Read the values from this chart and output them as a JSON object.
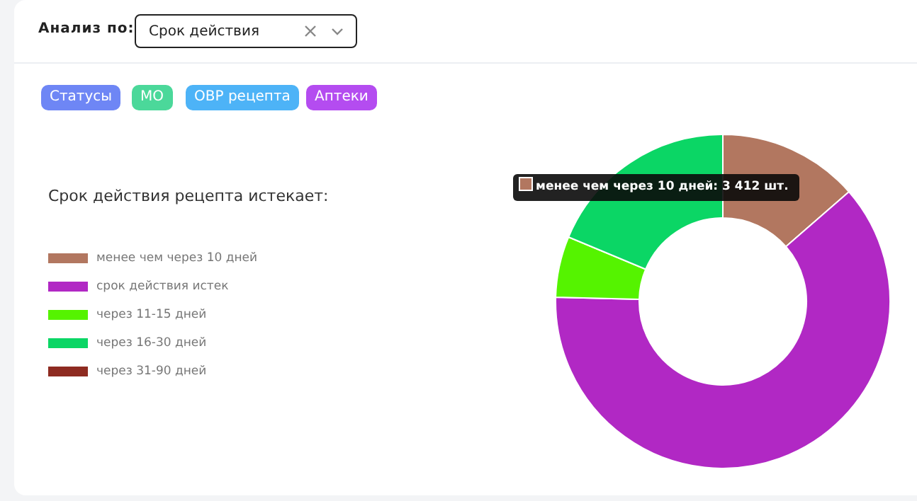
{
  "chart_data": {
    "type": "donut",
    "title": "Срок действия рецепта истекает:",
    "categories": [
      "менее чем через 10 дней",
      "срок действия истек",
      "через 11-15 дней",
      "через 16-30 дней",
      "через 31-90 дней"
    ],
    "values": [
      13.6,
      61.8,
      5.9,
      18.7,
      0
    ],
    "colors": [
      "#b27760",
      "#b128c4",
      "#55f300",
      "#0bd665",
      "#8e2b21"
    ],
    "legend": "left",
    "annotations": [
      "Анализ по:",
      "Срок действия",
      "Статусы",
      "МО",
      "ОВР рецепта",
      "Аптеки",
      "менее чем через 10 дней: 3 412 шт."
    ]
  }
}
